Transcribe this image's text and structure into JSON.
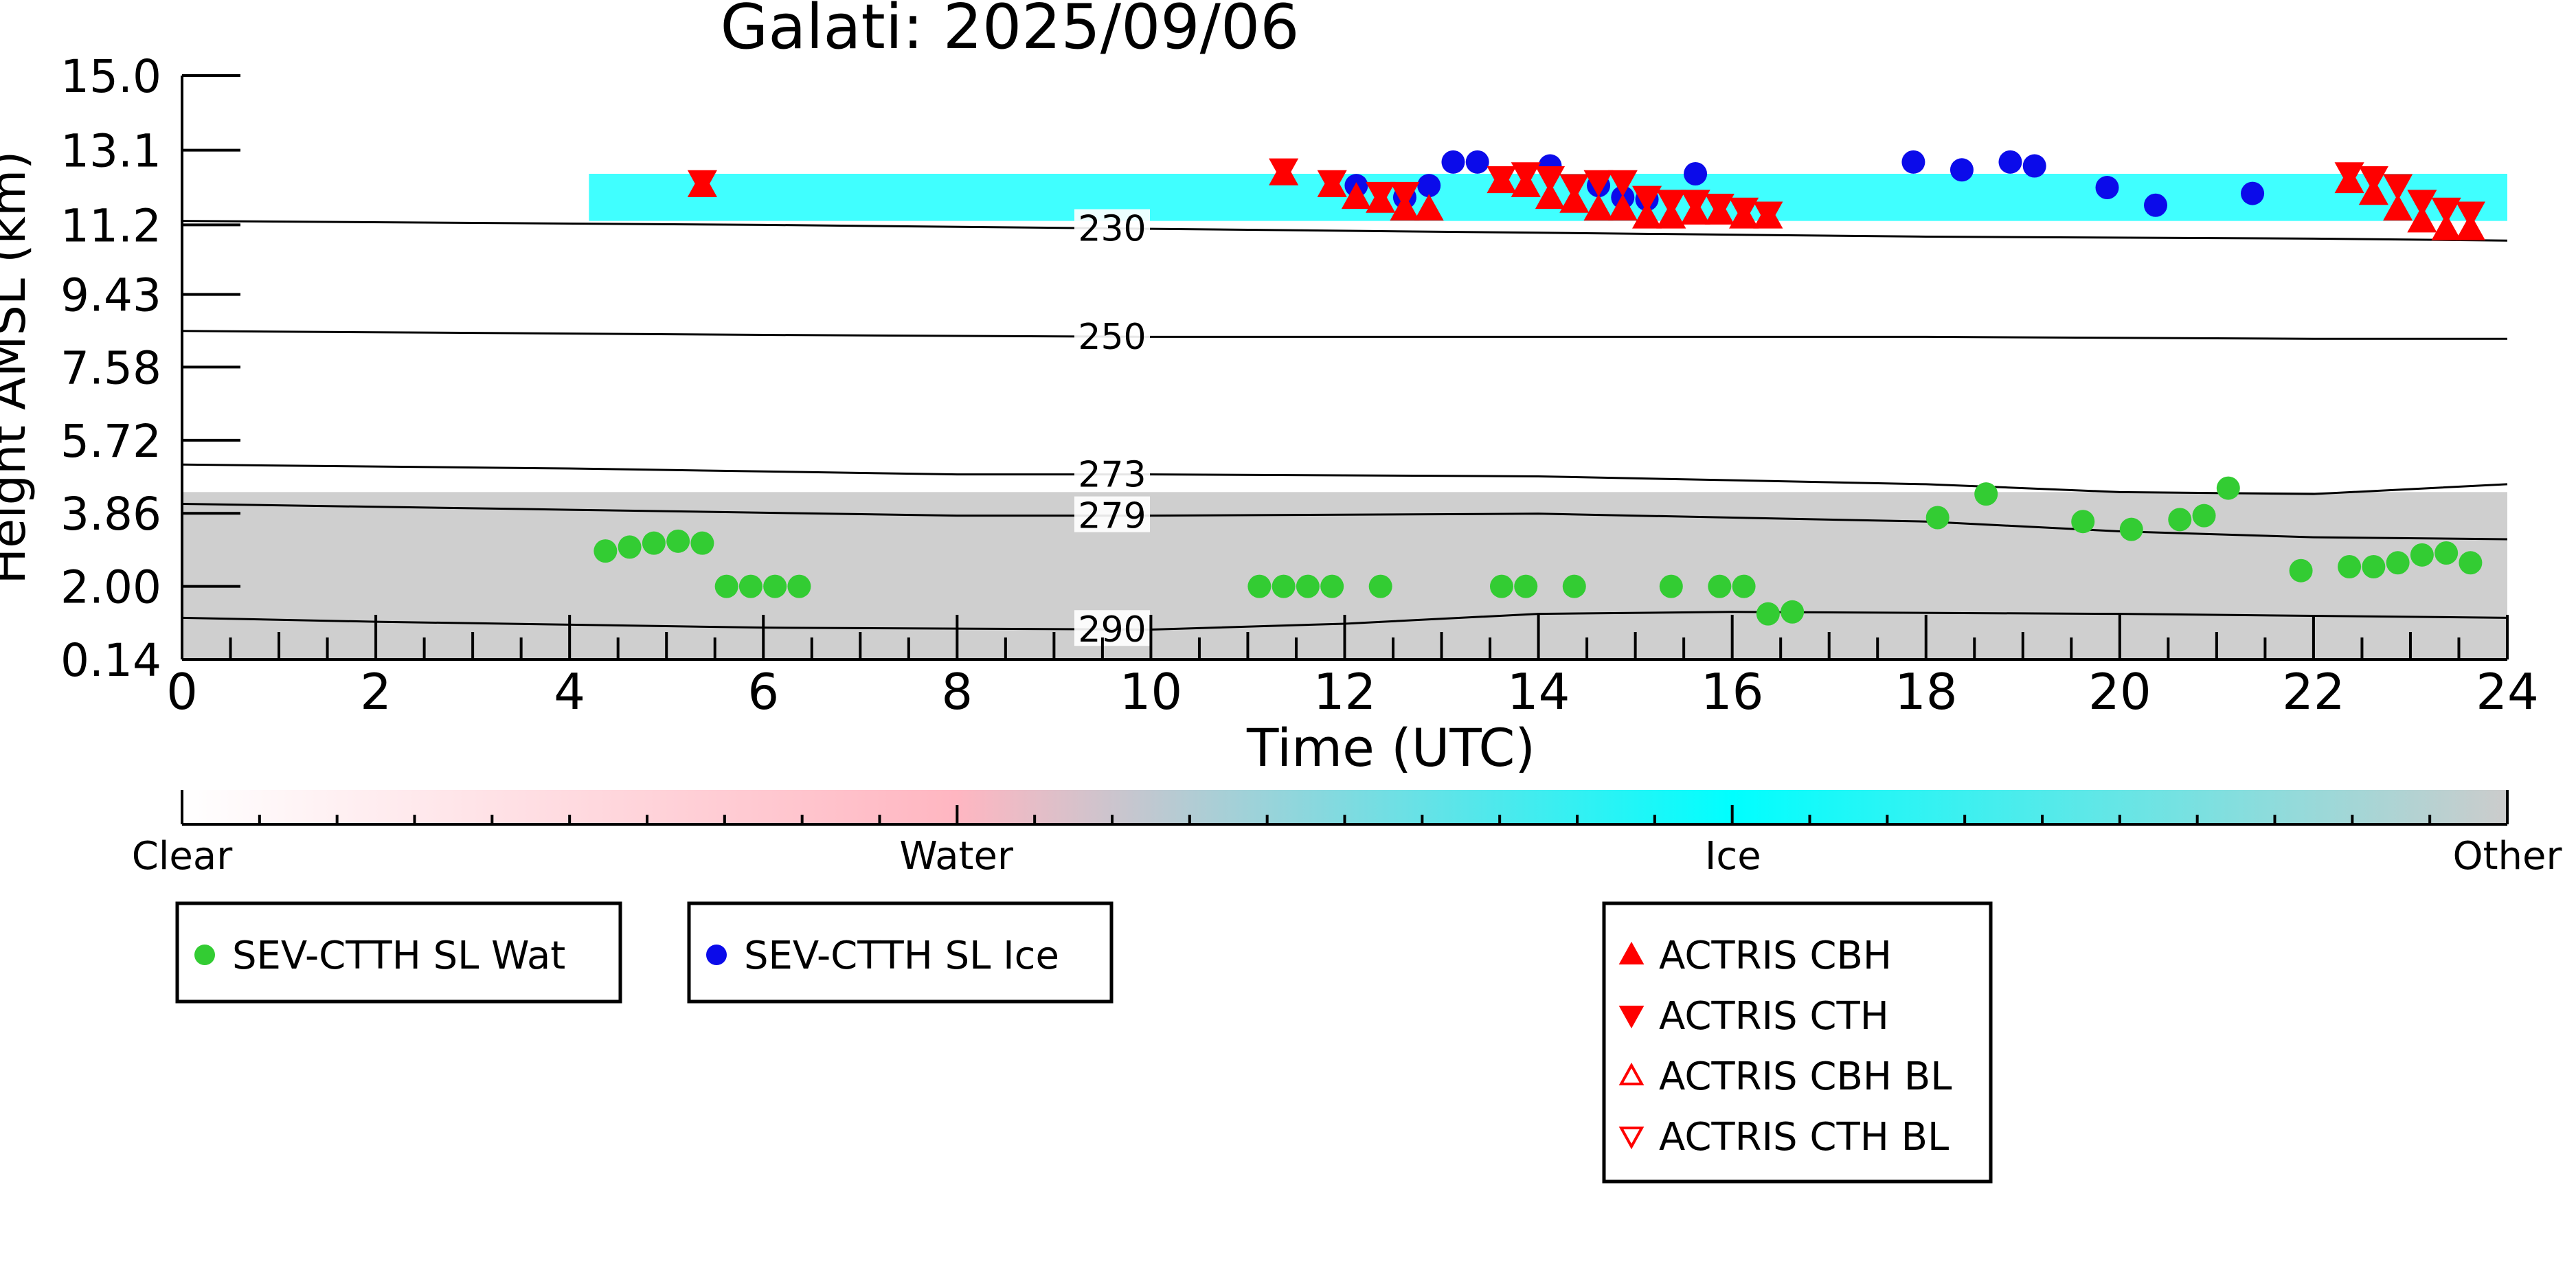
{
  "chart_data": {
    "type": "scatter",
    "title": "Galati: 2025/09/06",
    "xlabel": "Time (UTC)",
    "ylabel": "Height AMSL (km)",
    "xlim": [
      0,
      24
    ],
    "ylim": [
      0.14,
      15.0
    ],
    "x_ticks": [
      "0",
      "2",
      "4",
      "6",
      "8",
      "10",
      "12",
      "14",
      "16",
      "18",
      "20",
      "22",
      "24"
    ],
    "y_ticks": [
      "0.14",
      "2.00",
      "3.86",
      "5.72",
      "7.58",
      "9.43",
      "11.2",
      "13.1",
      "15.0"
    ],
    "colorbar": {
      "categories": [
        "Clear",
        "Water",
        "Ice",
        "Other"
      ],
      "colors": [
        "#ffffff",
        "#ffb6c1",
        "#00ffff",
        "#cccccc"
      ]
    },
    "contours": [
      {
        "label": "230",
        "x": [
          0,
          6,
          10,
          14,
          18,
          22,
          24
        ],
        "y": [
          11.3,
          11.2,
          11.1,
          11.0,
          10.9,
          10.85,
          10.8
        ]
      },
      {
        "label": "250",
        "x": [
          0,
          6,
          10,
          14,
          18,
          22,
          24
        ],
        "y": [
          8.5,
          8.4,
          8.35,
          8.35,
          8.35,
          8.3,
          8.3
        ]
      },
      {
        "label": "273",
        "x": [
          0,
          4,
          8,
          10,
          14,
          18,
          20,
          22,
          24
        ],
        "y": [
          5.1,
          5.0,
          4.85,
          4.85,
          4.8,
          4.6,
          4.4,
          4.35,
          4.6
        ]
      },
      {
        "label": "279",
        "x": [
          0,
          4,
          8,
          10,
          14,
          18,
          20,
          22,
          24
        ],
        "y": [
          4.1,
          3.95,
          3.8,
          3.8,
          3.85,
          3.65,
          3.4,
          3.25,
          3.2
        ]
      },
      {
        "label": "290",
        "x": [
          0,
          2,
          6,
          10,
          12,
          14,
          16,
          20,
          24
        ],
        "y": [
          1.2,
          1.1,
          0.95,
          0.9,
          1.05,
          1.3,
          1.35,
          1.3,
          1.2
        ]
      }
    ],
    "cloud_regions": [
      {
        "phase": "Ice",
        "x0": 4.2,
        "x1": 24.0,
        "y0": 11.3,
        "y1": 12.5
      },
      {
        "phase": "Other",
        "x0": 0.0,
        "x1": 24.0,
        "y0": 0.14,
        "y1": 4.4
      }
    ],
    "series": [
      {
        "name": "SEV-CTTH SL Wat",
        "color": "#33cc33",
        "marker": "circle",
        "x": [
          4.37,
          4.62,
          4.87,
          5.12,
          5.37,
          5.62,
          5.87,
          6.12,
          6.37,
          11.12,
          11.37,
          11.62,
          11.87,
          12.37,
          13.62,
          13.87,
          14.37,
          15.37,
          15.87,
          16.12,
          16.37,
          16.62,
          18.12,
          18.62,
          19.62,
          20.12,
          20.62,
          20.87,
          21.12,
          21.87,
          22.37,
          22.62,
          22.87,
          23.12,
          23.37,
          23.62
        ],
        "y": [
          2.9,
          3.0,
          3.1,
          3.15,
          3.1,
          2.0,
          2.0,
          2.0,
          2.0,
          2.0,
          2.0,
          2.0,
          2.0,
          2.0,
          2.0,
          2.0,
          2.0,
          2.0,
          2.0,
          2.0,
          1.3,
          1.35,
          3.75,
          4.35,
          3.65,
          3.45,
          3.7,
          3.8,
          4.5,
          2.4,
          2.5,
          2.5,
          2.6,
          2.8,
          2.85,
          2.6
        ]
      },
      {
        "name": "SEV-CTTH SL Ice",
        "color": "#0b0bea",
        "marker": "circle",
        "x": [
          12.12,
          12.62,
          12.87,
          13.12,
          13.37,
          14.12,
          14.62,
          14.87,
          15.12,
          15.62,
          17.87,
          18.37,
          18.87,
          19.12,
          19.87,
          20.37,
          21.37
        ],
        "y": [
          12.2,
          11.9,
          12.2,
          12.8,
          12.8,
          12.7,
          12.2,
          11.9,
          11.85,
          12.5,
          12.8,
          12.6,
          12.8,
          12.7,
          12.15,
          11.7,
          12.0
        ]
      },
      {
        "name": "ACTRIS CBH",
        "color": "#ff0000",
        "marker": "triangle-up",
        "x": [
          5.37,
          11.37,
          11.87,
          12.12,
          12.37,
          12.62,
          12.87,
          13.62,
          13.87,
          14.12,
          14.37,
          14.62,
          14.87,
          15.12,
          15.37,
          15.62,
          15.87,
          16.12,
          16.37,
          22.37,
          22.62,
          22.87,
          23.12,
          23.37,
          23.62
        ],
        "y": [
          12.2,
          12.5,
          12.2,
          11.9,
          11.8,
          11.6,
          11.6,
          12.3,
          12.2,
          11.9,
          11.8,
          11.6,
          11.6,
          11.4,
          11.4,
          11.5,
          11.5,
          11.4,
          11.4,
          12.3,
          12.0,
          11.6,
          11.3,
          11.1,
          11.1
        ]
      },
      {
        "name": "ACTRIS CTH",
        "color": "#ff0000",
        "marker": "triangle-down",
        "x": [
          5.37,
          11.37,
          11.87,
          12.37,
          12.62,
          13.62,
          13.87,
          14.12,
          14.37,
          14.62,
          14.87,
          15.12,
          15.37,
          15.62,
          15.87,
          16.12,
          16.37,
          22.37,
          22.62,
          22.87,
          23.12,
          23.37,
          23.62
        ],
        "y": [
          12.3,
          12.6,
          12.3,
          12.0,
          12.0,
          12.4,
          12.5,
          12.4,
          12.2,
          12.3,
          12.3,
          11.9,
          11.8,
          11.8,
          11.7,
          11.6,
          11.5,
          12.5,
          12.4,
          12.2,
          11.8,
          11.6,
          11.5
        ]
      },
      {
        "name": "ACTRIS CBH BL",
        "color": "#ff0000",
        "marker": "triangle-up-open",
        "x": [],
        "y": []
      },
      {
        "name": "ACTRIS CTH BL",
        "color": "#ff0000",
        "marker": "triangle-down-open",
        "x": [],
        "y": []
      }
    ]
  }
}
